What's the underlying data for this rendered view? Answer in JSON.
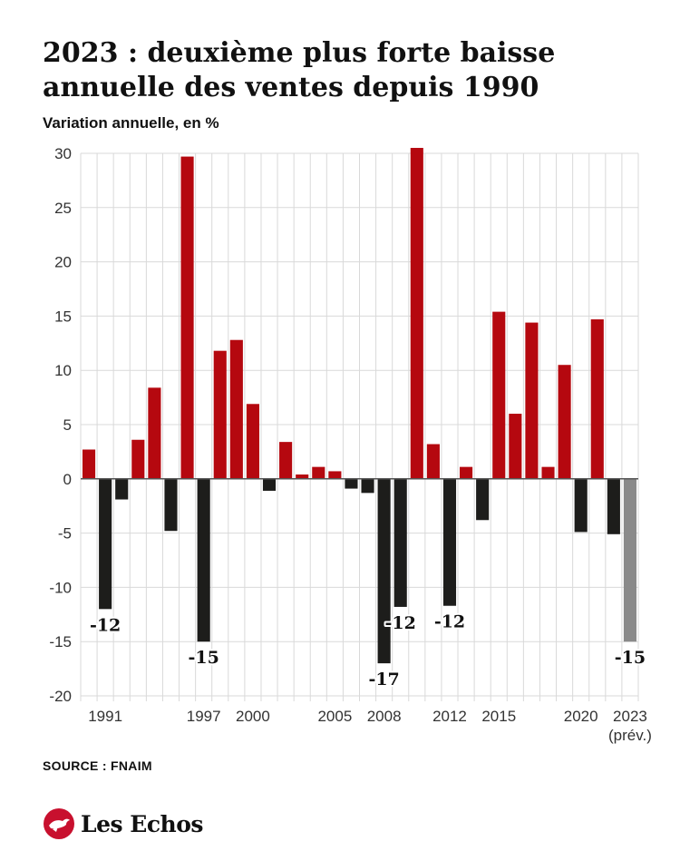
{
  "header": {
    "title": "2023 : deuxième plus forte baisse annuelle des ventes depuis 1990",
    "subtitle": "Variation annuelle, en %"
  },
  "footer": {
    "source": "SOURCE : FNAIM",
    "logo_text": "Les Echos"
  },
  "colors": {
    "positive": "#b5080f",
    "negative": "#1d1d1b",
    "forecast": "#8a8a8a",
    "grid": "#d9d9d9",
    "logo_red": "#c8102e"
  },
  "chart_data": {
    "type": "bar",
    "x": [
      1990,
      1991,
      1992,
      1993,
      1994,
      1995,
      1996,
      1997,
      1998,
      1999,
      2000,
      2001,
      2002,
      2003,
      2004,
      2005,
      2006,
      2007,
      2008,
      2009,
      2010,
      2011,
      2012,
      2013,
      2014,
      2015,
      2016,
      2017,
      2018,
      2019,
      2020,
      2021,
      2022,
      2023
    ],
    "values": [
      2.7,
      -12,
      -1.9,
      3.6,
      8.4,
      -4.8,
      29.7,
      -15,
      11.8,
      12.8,
      6.9,
      -1.1,
      3.4,
      0.4,
      1.1,
      0.7,
      -0.9,
      -1.3,
      -17,
      -11.8,
      30.5,
      3.2,
      -11.7,
      1.1,
      -3.8,
      15.4,
      6.0,
      14.4,
      1.1,
      10.5,
      -4.9,
      14.7,
      -5.1,
      -15
    ],
    "forecast_years": [
      2023
    ],
    "tick_labels": [
      {
        "year": 1991,
        "label": "1991"
      },
      {
        "year": 1997,
        "label": "1997"
      },
      {
        "year": 2000,
        "label": "2000"
      },
      {
        "year": 2005,
        "label": "2005"
      },
      {
        "year": 2008,
        "label": "2008"
      },
      {
        "year": 2012,
        "label": "2012"
      },
      {
        "year": 2015,
        "label": "2015"
      },
      {
        "year": 2020,
        "label": "2020"
      },
      {
        "year": 2023,
        "label": "2023"
      }
    ],
    "tick_sublabels": [
      {
        "year": 2023,
        "label": "(prév.)"
      }
    ],
    "data_labels": [
      {
        "year": 1991,
        "label": "-12"
      },
      {
        "year": 1997,
        "label": "-15"
      },
      {
        "year": 2008,
        "label": "-17"
      },
      {
        "year": 2009,
        "label": "-12"
      },
      {
        "year": 2012,
        "label": "-12"
      },
      {
        "year": 2023,
        "label": "-15"
      }
    ],
    "ylim": [
      -20,
      30
    ],
    "yticks": [
      30,
      25,
      20,
      15,
      10,
      5,
      0,
      -5,
      -10,
      -15,
      -20
    ],
    "grid": true,
    "legend": false
  }
}
